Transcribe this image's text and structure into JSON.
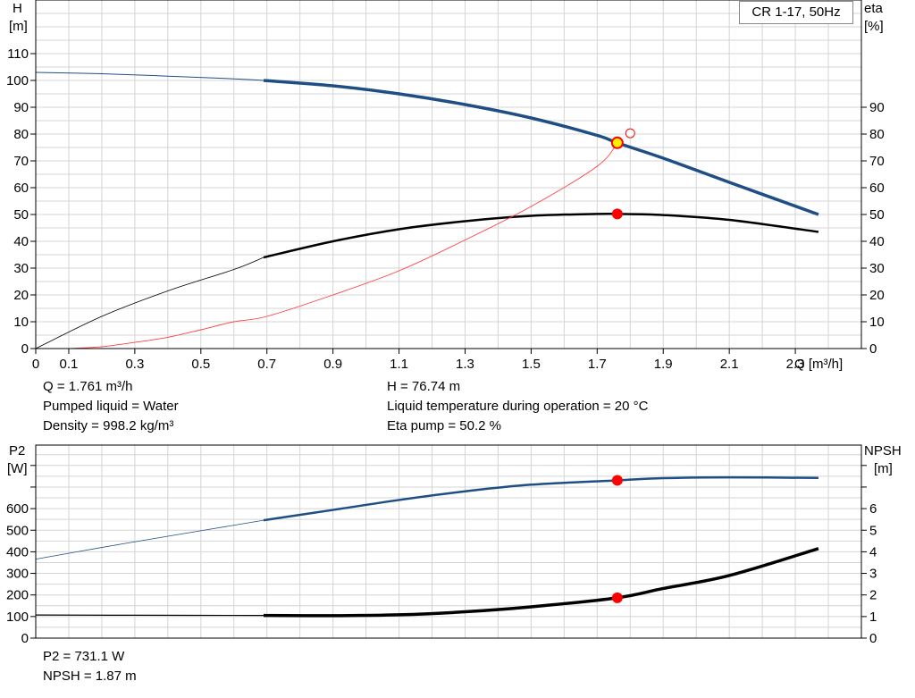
{
  "legend": "CR 1-17, 50Hz",
  "info": {
    "q": "Q = 1.761 m³/h",
    "liquid": "Pumped liquid = Water",
    "density": "Density = 998.2 kg/m³",
    "h": "H = 76.74 m",
    "temperature": "Liquid temperature during operation = 20 °C",
    "eta": "Eta pump = 50.2 %",
    "p2": "P2 = 731.1 W",
    "npsh": "NPSH = 1.87 m"
  },
  "colors": {
    "head": "#1f4e85",
    "eta": "#000000",
    "eff_curve": "#ff4040",
    "marker": "#ff0000",
    "duty": "#ffee00"
  },
  "chart_data": [
    {
      "type": "line",
      "xlabel": "Q [m³/h]",
      "ylabel_left": [
        "H",
        "[m]"
      ],
      "ylabel_right": [
        "eta",
        "[%]"
      ],
      "xlim": [
        0,
        2.5
      ],
      "ylim": [
        0,
        110
      ],
      "x_ticks": [
        "0",
        "0.1",
        "0.3",
        "0.5",
        "0.7",
        "0.9",
        "1.1",
        "1.3",
        "1.5",
        "1.7",
        "1.9",
        "2.1",
        "2.3"
      ],
      "y_ticks_left": [
        "0",
        "10",
        "20",
        "30",
        "40",
        "50",
        "60",
        "70",
        "80",
        "90",
        "100",
        "110"
      ],
      "y_ticks_right": [
        "0",
        "10",
        "20",
        "30",
        "40",
        "50",
        "60",
        "70",
        "80",
        "90"
      ],
      "grid": true,
      "series": [
        {
          "x": [
            0,
            0.2,
            0.4,
            0.6,
            0.69,
            0.9,
            1.1,
            1.3,
            1.5,
            1.7,
            1.761,
            1.9,
            2.1,
            2.37
          ],
          "y": [
            103,
            102.5,
            101.6,
            100.6,
            100,
            98,
            95,
            91,
            86,
            79.5,
            76.7,
            71,
            62,
            50
          ]
        },
        {
          "x": [
            0,
            0.2,
            0.4,
            0.6,
            0.69,
            0.9,
            1.1,
            1.3,
            1.5,
            1.7,
            1.761,
            1.9,
            2.1,
            2.37
          ],
          "y": [
            0,
            12,
            21.5,
            29.5,
            34,
            40,
            44.5,
            47.5,
            49.5,
            50.2,
            50.2,
            49.8,
            48,
            43.5
          ]
        },
        {
          "x": [
            0.1,
            0.2,
            0.3,
            0.4,
            0.5,
            0.6,
            0.7,
            0.9,
            1.1,
            1.3,
            1.5,
            1.7,
            1.761
          ],
          "y": [
            0,
            0.7,
            2.3,
            4.2,
            7,
            10,
            12,
            20,
            29,
            40.5,
            53,
            68,
            76.7
          ]
        }
      ],
      "points": [
        {
          "x": 1.761,
          "y": 76.74
        },
        {
          "x": 1.761,
          "y": 50.2
        },
        {
          "x": 1.8,
          "y": 80.3
        }
      ]
    },
    {
      "type": "line",
      "ylabel_left": [
        "P2",
        "[W]"
      ],
      "ylabel_right": [
        "NPSH",
        "[m]"
      ],
      "xlim": [
        0,
        2.5
      ],
      "ylim": [
        0,
        800
      ],
      "ylim_right": [
        0,
        8
      ],
      "y_ticks_left": [
        "0",
        "100",
        "200",
        "300",
        "400",
        "500",
        "600"
      ],
      "y_ticks_right": [
        "0",
        "1",
        "2",
        "3",
        "4",
        "5",
        "6"
      ],
      "grid": true,
      "series": [
        {
          "x": [
            0,
            0.2,
            0.4,
            0.69,
            0.9,
            1.1,
            1.3,
            1.5,
            1.761,
            1.9,
            2.1,
            2.37
          ],
          "y": [
            366,
            420,
            472,
            546,
            594,
            640,
            680,
            711,
            731,
            741,
            745,
            742
          ]
        },
        {
          "x": [
            0,
            0.3,
            0.69,
            0.9,
            1.1,
            1.3,
            1.5,
            1.761,
            1.9,
            2.1,
            2.37
          ],
          "y": [
            1.07,
            1.06,
            1.05,
            1.04,
            1.08,
            1.22,
            1.45,
            1.87,
            2.3,
            2.9,
            4.15
          ]
        }
      ],
      "points": [
        {
          "x": 1.761,
          "y": 731.1
        },
        {
          "x": 1.761,
          "y": 1.87
        }
      ]
    }
  ]
}
